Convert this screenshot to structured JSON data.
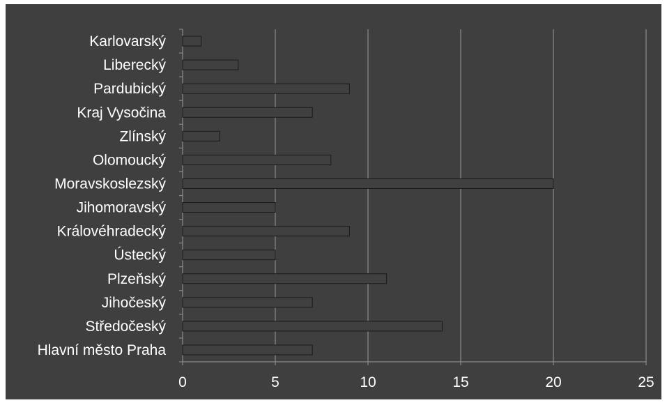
{
  "chart_data": {
    "type": "bar",
    "orientation": "horizontal",
    "title": "",
    "xlabel": "",
    "ylabel": "",
    "categories": [
      "Hlavní město Praha",
      "Středočeský",
      "Jihočeský",
      "Plzeňský",
      "Ústecký",
      "Královéhradecký",
      "Jihomoravský",
      "Moravskoslezský",
      "Olomoucký",
      "Zlínský",
      "Kraj Vysočina",
      "Pardubický",
      "Liberecký",
      "Karlovarský"
    ],
    "values": [
      7,
      14,
      7,
      11,
      5,
      9,
      5,
      20,
      8,
      2,
      7,
      9,
      3,
      1
    ],
    "xlim": [
      0,
      25
    ],
    "xticks": [
      0,
      5,
      10,
      15,
      20,
      25
    ],
    "grid": "vertical",
    "legend": "none",
    "colors": {
      "background": "#3f3f3f",
      "bar": "#404040",
      "bar_outline": "#1a1a1a",
      "gridline": "#8c8c8c",
      "text": "#ffffff",
      "frame": "#ffffff"
    }
  }
}
